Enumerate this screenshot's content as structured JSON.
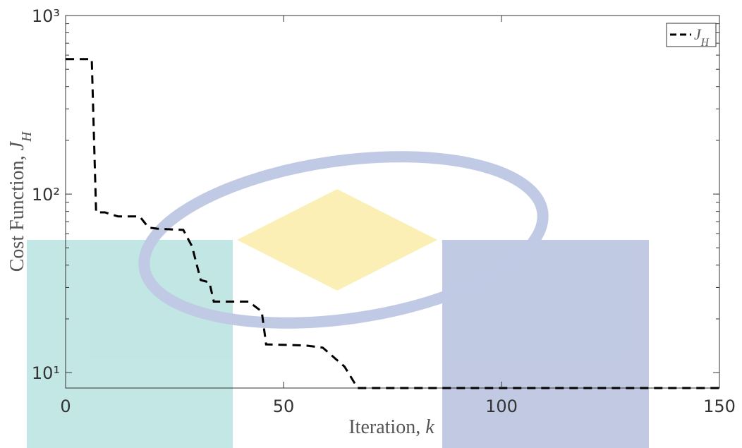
{
  "chart_data": {
    "type": "line",
    "xlabel": "Iteration, k",
    "ylabel": "Cost Function, J_H",
    "x": [
      0,
      6,
      7,
      9,
      12,
      17,
      19,
      21,
      27,
      29,
      31,
      33,
      34,
      42,
      45,
      46,
      55,
      59,
      64,
      67,
      150
    ],
    "series": [
      {
        "name": "J_H",
        "color": "#000000",
        "values": [
          570,
          570,
          79,
          79,
          75,
          75,
          65,
          64,
          63,
          51,
          33,
          32,
          25,
          25,
          22,
          14.4,
          14.2,
          13.8,
          10.8,
          8.2,
          8.2
        ]
      }
    ],
    "xlim": [
      0,
      150
    ],
    "xticks": [
      0,
      50,
      100,
      150
    ],
    "ylim": [
      8.2,
      1000
    ],
    "yticks": [
      {
        "value": 10,
        "label": "10¹"
      },
      {
        "value": 100,
        "label": "10²"
      },
      {
        "value": 1000,
        "label": "10³"
      }
    ],
    "ylog": true,
    "grid": false,
    "legend": "upper right"
  }
}
